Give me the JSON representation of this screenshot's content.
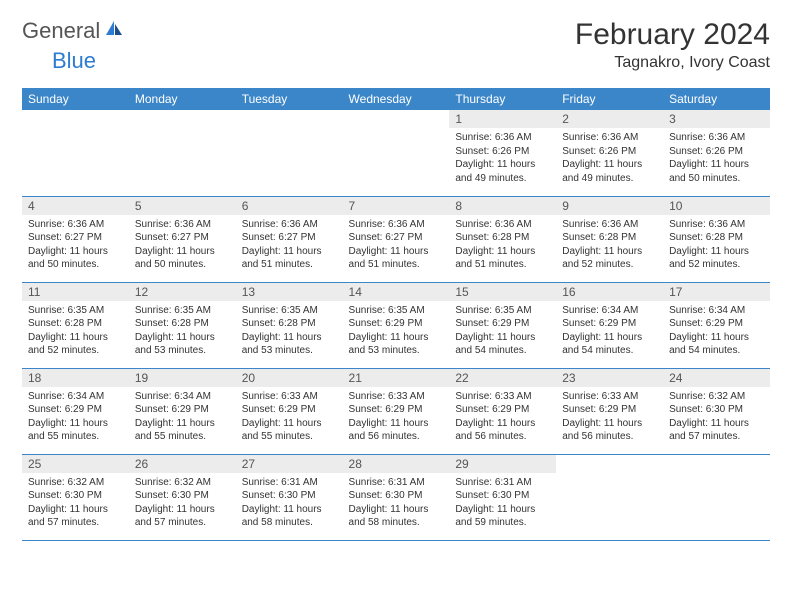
{
  "logo": {
    "text1": "General",
    "text2": "Blue",
    "color1": "#555555",
    "color2": "#2e7cd1"
  },
  "title": "February 2024",
  "location": "Tagnakro, Ivory Coast",
  "header_bg": "#3b86c9",
  "daynum_bg": "#ececec",
  "days_of_week": [
    "Sunday",
    "Monday",
    "Tuesday",
    "Wednesday",
    "Thursday",
    "Friday",
    "Saturday"
  ],
  "cells": [
    {
      "n": "",
      "sr": "",
      "ss": "",
      "dl": ""
    },
    {
      "n": "",
      "sr": "",
      "ss": "",
      "dl": ""
    },
    {
      "n": "",
      "sr": "",
      "ss": "",
      "dl": ""
    },
    {
      "n": "",
      "sr": "",
      "ss": "",
      "dl": ""
    },
    {
      "n": "1",
      "sr": "Sunrise: 6:36 AM",
      "ss": "Sunset: 6:26 PM",
      "dl": "Daylight: 11 hours and 49 minutes."
    },
    {
      "n": "2",
      "sr": "Sunrise: 6:36 AM",
      "ss": "Sunset: 6:26 PM",
      "dl": "Daylight: 11 hours and 49 minutes."
    },
    {
      "n": "3",
      "sr": "Sunrise: 6:36 AM",
      "ss": "Sunset: 6:26 PM",
      "dl": "Daylight: 11 hours and 50 minutes."
    },
    {
      "n": "4",
      "sr": "Sunrise: 6:36 AM",
      "ss": "Sunset: 6:27 PM",
      "dl": "Daylight: 11 hours and 50 minutes."
    },
    {
      "n": "5",
      "sr": "Sunrise: 6:36 AM",
      "ss": "Sunset: 6:27 PM",
      "dl": "Daylight: 11 hours and 50 minutes."
    },
    {
      "n": "6",
      "sr": "Sunrise: 6:36 AM",
      "ss": "Sunset: 6:27 PM",
      "dl": "Daylight: 11 hours and 51 minutes."
    },
    {
      "n": "7",
      "sr": "Sunrise: 6:36 AM",
      "ss": "Sunset: 6:27 PM",
      "dl": "Daylight: 11 hours and 51 minutes."
    },
    {
      "n": "8",
      "sr": "Sunrise: 6:36 AM",
      "ss": "Sunset: 6:28 PM",
      "dl": "Daylight: 11 hours and 51 minutes."
    },
    {
      "n": "9",
      "sr": "Sunrise: 6:36 AM",
      "ss": "Sunset: 6:28 PM",
      "dl": "Daylight: 11 hours and 52 minutes."
    },
    {
      "n": "10",
      "sr": "Sunrise: 6:36 AM",
      "ss": "Sunset: 6:28 PM",
      "dl": "Daylight: 11 hours and 52 minutes."
    },
    {
      "n": "11",
      "sr": "Sunrise: 6:35 AM",
      "ss": "Sunset: 6:28 PM",
      "dl": "Daylight: 11 hours and 52 minutes."
    },
    {
      "n": "12",
      "sr": "Sunrise: 6:35 AM",
      "ss": "Sunset: 6:28 PM",
      "dl": "Daylight: 11 hours and 53 minutes."
    },
    {
      "n": "13",
      "sr": "Sunrise: 6:35 AM",
      "ss": "Sunset: 6:28 PM",
      "dl": "Daylight: 11 hours and 53 minutes."
    },
    {
      "n": "14",
      "sr": "Sunrise: 6:35 AM",
      "ss": "Sunset: 6:29 PM",
      "dl": "Daylight: 11 hours and 53 minutes."
    },
    {
      "n": "15",
      "sr": "Sunrise: 6:35 AM",
      "ss": "Sunset: 6:29 PM",
      "dl": "Daylight: 11 hours and 54 minutes."
    },
    {
      "n": "16",
      "sr": "Sunrise: 6:34 AM",
      "ss": "Sunset: 6:29 PM",
      "dl": "Daylight: 11 hours and 54 minutes."
    },
    {
      "n": "17",
      "sr": "Sunrise: 6:34 AM",
      "ss": "Sunset: 6:29 PM",
      "dl": "Daylight: 11 hours and 54 minutes."
    },
    {
      "n": "18",
      "sr": "Sunrise: 6:34 AM",
      "ss": "Sunset: 6:29 PM",
      "dl": "Daylight: 11 hours and 55 minutes."
    },
    {
      "n": "19",
      "sr": "Sunrise: 6:34 AM",
      "ss": "Sunset: 6:29 PM",
      "dl": "Daylight: 11 hours and 55 minutes."
    },
    {
      "n": "20",
      "sr": "Sunrise: 6:33 AM",
      "ss": "Sunset: 6:29 PM",
      "dl": "Daylight: 11 hours and 55 minutes."
    },
    {
      "n": "21",
      "sr": "Sunrise: 6:33 AM",
      "ss": "Sunset: 6:29 PM",
      "dl": "Daylight: 11 hours and 56 minutes."
    },
    {
      "n": "22",
      "sr": "Sunrise: 6:33 AM",
      "ss": "Sunset: 6:29 PM",
      "dl": "Daylight: 11 hours and 56 minutes."
    },
    {
      "n": "23",
      "sr": "Sunrise: 6:33 AM",
      "ss": "Sunset: 6:29 PM",
      "dl": "Daylight: 11 hours and 56 minutes."
    },
    {
      "n": "24",
      "sr": "Sunrise: 6:32 AM",
      "ss": "Sunset: 6:30 PM",
      "dl": "Daylight: 11 hours and 57 minutes."
    },
    {
      "n": "25",
      "sr": "Sunrise: 6:32 AM",
      "ss": "Sunset: 6:30 PM",
      "dl": "Daylight: 11 hours and 57 minutes."
    },
    {
      "n": "26",
      "sr": "Sunrise: 6:32 AM",
      "ss": "Sunset: 6:30 PM",
      "dl": "Daylight: 11 hours and 57 minutes."
    },
    {
      "n": "27",
      "sr": "Sunrise: 6:31 AM",
      "ss": "Sunset: 6:30 PM",
      "dl": "Daylight: 11 hours and 58 minutes."
    },
    {
      "n": "28",
      "sr": "Sunrise: 6:31 AM",
      "ss": "Sunset: 6:30 PM",
      "dl": "Daylight: 11 hours and 58 minutes."
    },
    {
      "n": "29",
      "sr": "Sunrise: 6:31 AM",
      "ss": "Sunset: 6:30 PM",
      "dl": "Daylight: 11 hours and 59 minutes."
    },
    {
      "n": "",
      "sr": "",
      "ss": "",
      "dl": ""
    },
    {
      "n": "",
      "sr": "",
      "ss": "",
      "dl": ""
    }
  ]
}
